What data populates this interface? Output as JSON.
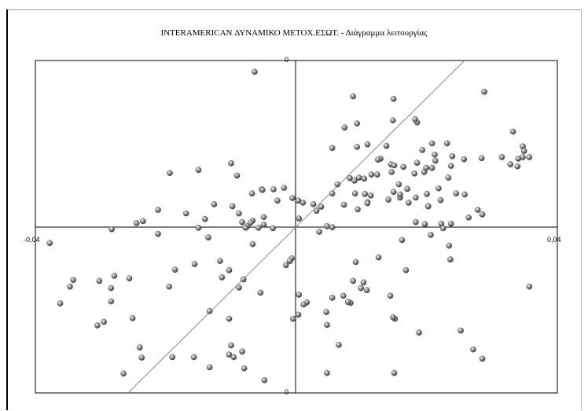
{
  "chart_data": {
    "type": "scatter",
    "title": "INTERAMERICAN ΔΥΝΑΜΙΚΟ ΜΕΤΟΧ.ΕΣΩΤ. - Διάγραμμα λειτουργίας",
    "xlabel": "",
    "ylabel": "",
    "xlim": [
      -0.04,
      0.04
    ],
    "ylim": [
      -0.0325,
      0.0325
    ],
    "x_tick_labels": {
      "min": "-0,04",
      "max": "0,04"
    },
    "y_tick_labels": {
      "top": "0",
      "bottom": "0"
    },
    "grid": false,
    "reference_line": {
      "from": [
        -0.0258,
        -0.0325
      ],
      "to": [
        0.0258,
        0.0325
      ]
    },
    "colors": {
      "point": "#8a8a8a",
      "point_highlight": "#f2f2f2",
      "axis": "#000000",
      "reference_line": "#8c8c8c"
    },
    "points": [
      [
        -0.0064,
        0.0303
      ],
      [
        0.0087,
        0.0255
      ],
      [
        0.0149,
        0.025
      ],
      [
        0.0288,
        0.0264
      ],
      [
        0.0185,
        0.0204
      ],
      [
        0.0148,
        0.0208
      ],
      [
        0.0074,
        0.0194
      ],
      [
        0.0093,
        0.0202
      ],
      [
        0.0257,
        0.0132
      ],
      [
        0.0055,
        0.0154
      ],
      [
        0.0093,
        0.0156
      ],
      [
        0.0182,
        0.021
      ],
      [
        0.0332,
        0.0186
      ],
      [
        0.0347,
        0.0157
      ],
      [
        0.0347,
        0.0136
      ],
      [
        0.034,
        0.0133
      ],
      [
        0.0349,
        0.0148
      ],
      [
        0.0339,
        0.0118
      ],
      [
        0.0357,
        0.0136
      ],
      [
        0.0315,
        0.0136
      ],
      [
        0.0284,
        0.0134
      ],
      [
        -0.0194,
        0.0105
      ],
      [
        -0.015,
        0.0111
      ],
      [
        -0.01,
        0.0124
      ],
      [
        -0.0091,
        0.01
      ],
      [
        -0.0053,
        0.0073
      ],
      [
        -0.0068,
        0.0065
      ],
      [
        -0.0052,
        0.0072
      ],
      [
        -0.005,
        0.0019
      ],
      [
        -0.0212,
        0.0033
      ],
      [
        -0.0126,
        0.0044
      ],
      [
        -0.0169,
        0.0026
      ],
      [
        -0.014,
        0.0015
      ],
      [
        -0.0088,
        0.0026
      ],
      [
        -0.0083,
        0.0009
      ],
      [
        -0.0067,
        0.0012
      ],
      [
        -0.005,
        0.0004
      ],
      [
        -0.0058,
        -0.0002
      ],
      [
        -0.0075,
        0.0001
      ],
      [
        -0.007,
        0.0008
      ],
      [
        -0.0078,
        -0.0002
      ],
      [
        -0.015,
        -0.0002
      ],
      [
        -0.0135,
        -0.0021
      ],
      [
        -0.0035,
        0.0073
      ],
      [
        -0.0006,
        0.0056
      ],
      [
        -0.0019,
        0.0076
      ],
      [
        -0.0029,
        0.0051
      ],
      [
        0.0063,
        0.0083
      ],
      [
        0.0082,
        0.0095
      ],
      [
        0.0089,
        0.009
      ],
      [
        0.0096,
        0.0096
      ],
      [
        0.0104,
        0.0094
      ],
      [
        0.0115,
        0.0102
      ],
      [
        0.0145,
        0.0122
      ],
      [
        0.0124,
        0.0102
      ],
      [
        0.0146,
        0.0107
      ],
      [
        0.0157,
        0.0083
      ],
      [
        0.0181,
        0.0104
      ],
      [
        0.0196,
        0.0107
      ],
      [
        0.017,
        0.0074
      ],
      [
        0.0149,
        0.0068
      ],
      [
        0.0114,
        0.0061
      ],
      [
        0.0105,
        0.0064
      ],
      [
        0.009,
        0.0065
      ],
      [
        0.0055,
        0.0065
      ],
      [
        0.0038,
        0.0039
      ],
      [
        0.0026,
        0.0044
      ],
      [
        0.001,
        0.0047
      ],
      [
        0.0003,
        0.0051
      ],
      [
        0.0035,
        -0.001
      ],
      [
        0.0094,
        0.0034
      ],
      [
        0.0073,
        0.0043
      ],
      [
        0.0109,
        0.0048
      ],
      [
        0.0109,
        0.0046
      ],
      [
        0.0141,
        0.0053
      ],
      [
        0.0159,
        0.0057
      ],
      [
        0.0172,
        0.0047
      ],
      [
        0.0202,
        0.004
      ],
      [
        0.0218,
        0.0075
      ],
      [
        0.0245,
        0.0065
      ],
      [
        0.0233,
        0.0096
      ],
      [
        0.0237,
        0.0119
      ],
      [
        0.0213,
        0.0129
      ],
      [
        0.0199,
        0.0115
      ],
      [
        0.0212,
        0.0141
      ],
      [
        0.0208,
        0.0163
      ],
      [
        0.0231,
        0.0163
      ],
      [
        0.0239,
        0.0138
      ],
      [
        0.0208,
        0.0115
      ],
      [
        0.0193,
        0.015
      ],
      [
        0.0129,
        0.0133
      ],
      [
        0.0185,
        0.0125
      ],
      [
        0.0109,
        0.0161
      ],
      [
        0.0125,
        0.0131
      ],
      [
        0.0138,
        0.0158
      ],
      [
        0.015,
        0.012
      ],
      [
        0.0164,
        0.0117
      ],
      [
        0.0159,
        0.0063
      ],
      [
        0.0183,
        0.0057
      ],
      [
        0.02,
        0.0064
      ],
      [
        0.0221,
        0.0052
      ],
      [
        0.0202,
        0.004
      ],
      [
        0.0183,
        0.0009
      ],
      [
        0.0197,
        0.0005
      ],
      [
        0.0222,
        0.0006
      ],
      [
        0.0258,
        0.0063
      ],
      [
        0.0278,
        0.0033
      ],
      [
        0.0285,
        0.0024
      ],
      [
        0.0328,
        0.0122
      ],
      [
        0.0264,
        0.0018
      ],
      [
        0.0237,
        0.0006
      ],
      [
        0.0225,
        -0.0003
      ],
      [
        0.0206,
        -0.0016
      ],
      [
        0.0162,
        -0.0026
      ],
      [
        0.0234,
        -0.0037
      ],
      [
        0.0236,
        -0.0064
      ],
      [
        0.0168,
        -0.0085
      ],
      [
        0.0103,
        -0.0109
      ],
      [
        0.0108,
        -0.0124
      ],
      [
        0.0087,
        -0.0106
      ],
      [
        0.0144,
        -0.0135
      ],
      [
        0.0083,
        -0.0149
      ],
      [
        0.0072,
        -0.0135
      ],
      [
        0.0055,
        -0.0139
      ],
      [
        0.0099,
        -0.012
      ],
      [
        0.0079,
        -0.0147
      ],
      [
        0.0046,
        -0.0167
      ],
      [
        0.0016,
        -0.0148
      ],
      [
        0.0011,
        -0.0152
      ],
      [
        0.0003,
        -0.0172
      ],
      [
        0.0151,
        -0.018
      ],
      [
        0.0148,
        -0.0177
      ],
      [
        0.0188,
        -0.0207
      ],
      [
        0.0252,
        -0.0203
      ],
      [
        0.0271,
        -0.024
      ],
      [
        0.0285,
        -0.0258
      ],
      [
        0.0357,
        -0.0117
      ],
      [
        -0.0067,
        -0.0034
      ],
      [
        -0.0117,
        -0.0067
      ],
      [
        -0.0103,
        -0.0085
      ],
      [
        -0.0081,
        -0.0103
      ],
      [
        -0.0088,
        -0.0119
      ],
      [
        -0.0186,
        -0.0084
      ],
      [
        -0.0195,
        -0.0117
      ],
      [
        -0.0256,
        -0.0101
      ],
      [
        -0.0284,
        -0.012
      ],
      [
        -0.0251,
        -0.0179
      ],
      [
        -0.0295,
        -0.0186
      ],
      [
        -0.024,
        -0.0236
      ],
      [
        -0.0237,
        -0.0256
      ],
      [
        -0.0265,
        -0.0287
      ],
      [
        -0.0157,
        -0.0255
      ],
      [
        -0.0133,
        -0.0275
      ],
      [
        -0.0103,
        -0.025
      ],
      [
        -0.0096,
        -0.0255
      ],
      [
        -0.01,
        -0.0232
      ],
      [
        -0.0083,
        -0.0244
      ],
      [
        -0.0049,
        -0.03
      ],
      [
        -0.008,
        -0.0277
      ],
      [
        -0.0005,
        -0.018
      ],
      [
        -0.0284,
        -0.0146
      ],
      [
        -0.019,
        -0.0255
      ],
      [
        -0.0362,
        -0.015
      ],
      [
        -0.0342,
        -0.0104
      ],
      [
        -0.0347,
        -0.0117
      ],
      [
        -0.0302,
        -0.0106
      ],
      [
        -0.0279,
        -0.0096
      ],
      [
        -0.0235,
        0.0011
      ],
      [
        -0.0156,
        -0.0073
      ],
      [
        -0.0114,
        -0.0099
      ],
      [
        -0.0055,
        -0.0129
      ],
      [
        0.0004,
        -0.0133
      ],
      [
        -0.0103,
        -0.018
      ],
      [
        -0.0016,
        -0.0075
      ],
      [
        0.0126,
        -0.006
      ],
      [
        0.0091,
        -0.0069
      ],
      [
        0.0055,
        -0.0001
      ],
      [
        -0.0036,
        -0.0003
      ],
      [
        0.0031,
        0.0031
      ],
      [
        0.0047,
        0.0001
      ],
      [
        -0.0245,
        0.0007
      ],
      [
        -0.0378,
        -0.0032
      ],
      [
        -0.0305,
        -0.0193
      ],
      [
        -0.0283,
        -0.0005
      ],
      [
        -0.0212,
        -0.0014
      ],
      [
        0.0047,
        -0.0192
      ],
      [
        0.0047,
        -0.0286
      ],
      [
        0.015,
        -0.0286
      ],
      [
        -0.0098,
        0.004
      ],
      [
        0.0065,
        -0.0231
      ],
      [
        -0.0133,
        -0.0165
      ],
      [
        0.0004,
        0.0016
      ],
      [
        -0.0007,
        -0.0062
      ],
      [
        -0.001,
        -0.0067
      ]
    ]
  }
}
